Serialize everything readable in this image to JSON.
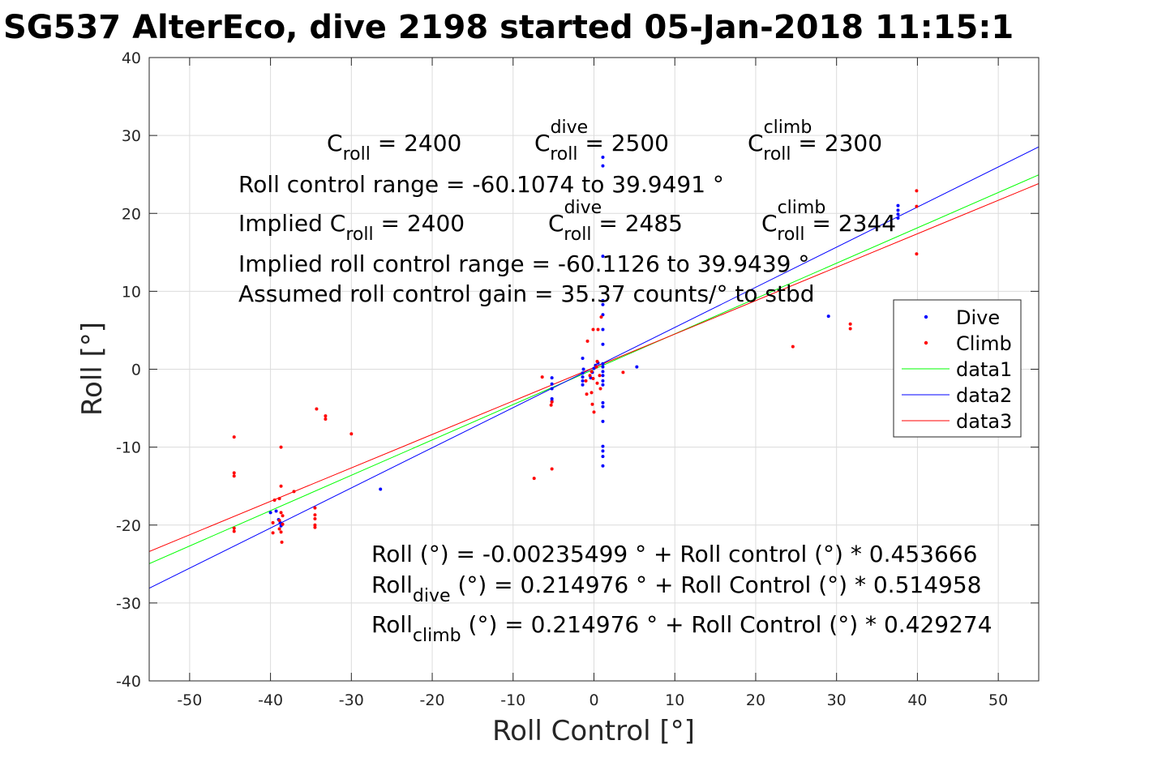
{
  "chart_data": {
    "type": "scatter",
    "title": "SG537 AlterEco, dive 2198 started 05-Jan-2018 11:15:1",
    "xlabel": "Roll Control [°]",
    "ylabel": "Roll [°]",
    "xlim": [
      -55,
      55
    ],
    "ylim": [
      -40,
      40
    ],
    "xticks": [
      -50,
      -40,
      -30,
      -20,
      -10,
      0,
      10,
      20,
      30,
      40,
      50
    ],
    "yticks": [
      -40,
      -30,
      -20,
      -10,
      0,
      10,
      20,
      30,
      40
    ],
    "grid": true,
    "legend_position": "right",
    "annotations_top": {
      "c_roll": "2400",
      "c_roll_dive": "2500",
      "c_roll_climb": "2300",
      "range_line": "Roll control range = -60.1074 to 39.9491 °",
      "implied_prefix": "Implied C",
      "implied_c_roll": "2485",
      "implied_c_roll_value": "2400",
      "implied_c_roll_climb": "2344",
      "implied_range_line": "Implied roll control range = -60.1126 to 39.9439 °",
      "gain_line": "Assumed roll control gain = 35.37 counts/° to stbd"
    },
    "annotations_bottom": {
      "fit_all": "Roll (°) = -0.00235499 ° + Roll control (°) * 0.453666",
      "fit_dive_rest": "(°) = 0.214976 ° + Roll Control (°) * 0.514958",
      "fit_climb_rest": "(°) = 0.214976 ° + Roll Control (°) * 0.429274"
    },
    "series": [
      {
        "name": "Dive",
        "kind": "points",
        "color": "#0000ff",
        "points": [
          [
            1.1,
            27.2
          ],
          [
            1.1,
            26.1
          ],
          [
            1.1,
            14.5
          ],
          [
            1.1,
            8.8
          ],
          [
            1.1,
            8.3
          ],
          [
            1.1,
            7.0
          ],
          [
            1.1,
            5.1
          ],
          [
            1.1,
            3.2
          ],
          [
            1.1,
            0.7
          ],
          [
            1.1,
            0.3
          ],
          [
            1.1,
            -0.3
          ],
          [
            1.1,
            -0.8
          ],
          [
            1.1,
            -1.5
          ],
          [
            1.1,
            -2.0
          ],
          [
            1.1,
            -4.3
          ],
          [
            1.1,
            -4.8
          ],
          [
            1.1,
            -6.7
          ],
          [
            1.1,
            -9.9
          ],
          [
            1.1,
            -10.5
          ],
          [
            1.1,
            -11.2
          ],
          [
            1.1,
            -12.4
          ],
          [
            0.2,
            0.5
          ],
          [
            0.0,
            0.1
          ],
          [
            -0.2,
            -0.4
          ],
          [
            0.5,
            0.8
          ],
          [
            -0.4,
            -1.1
          ],
          [
            -1.4,
            1.4
          ],
          [
            -1.3,
            0.0
          ],
          [
            -1.4,
            -0.5
          ],
          [
            -1.4,
            -1.0
          ],
          [
            -1.4,
            -1.5
          ],
          [
            -1.4,
            -2.0
          ],
          [
            -5.2,
            -1.1
          ],
          [
            -5.2,
            -1.9
          ],
          [
            -5.2,
            -2.5
          ],
          [
            -5.2,
            -3.8
          ],
          [
            -5.2,
            -4.1
          ],
          [
            5.3,
            0.3
          ],
          [
            29.0,
            6.8
          ],
          [
            -26.4,
            -15.4
          ],
          [
            37.6,
            21.0
          ],
          [
            37.6,
            20.4
          ],
          [
            37.6,
            19.9
          ],
          [
            37.6,
            19.4
          ],
          [
            -40.0,
            -18.4
          ],
          [
            -39.3,
            -18.2
          ],
          [
            -39.0,
            -19.3
          ],
          [
            -38.8,
            -19.7
          ],
          [
            -38.7,
            -20.1
          ]
        ]
      },
      {
        "name": "Climb",
        "kind": "points",
        "color": "#ff0000",
        "points": [
          [
            39.9,
            22.9
          ],
          [
            39.9,
            20.9
          ],
          [
            39.9,
            14.8
          ],
          [
            31.7,
            5.8
          ],
          [
            31.7,
            5.2
          ],
          [
            24.6,
            2.9
          ],
          [
            0.9,
            6.7
          ],
          [
            0.5,
            5.1
          ],
          [
            -0.1,
            5.1
          ],
          [
            -0.8,
            3.6
          ],
          [
            0.4,
            1.0
          ],
          [
            0.3,
            0.3
          ],
          [
            -0.3,
            -0.3
          ],
          [
            -0.5,
            -0.8
          ],
          [
            -0.1,
            -1.2
          ],
          [
            0.4,
            -1.8
          ],
          [
            -0.9,
            -3.2
          ],
          [
            -0.3,
            -3.0
          ],
          [
            -0.2,
            -4.5
          ],
          [
            0.0,
            -5.5
          ],
          [
            0.8,
            -2.5
          ],
          [
            -1.0,
            -1.5
          ],
          [
            0.7,
            -0.8
          ],
          [
            3.6,
            -0.4
          ],
          [
            -6.4,
            -1.0
          ],
          [
            -5.3,
            -4.6
          ],
          [
            -5.2,
            -4.2
          ],
          [
            -5.2,
            -12.8
          ],
          [
            -7.4,
            -14.0
          ],
          [
            -44.5,
            -8.7
          ],
          [
            -44.5,
            -13.3
          ],
          [
            -44.5,
            -13.7
          ],
          [
            -44.5,
            -20.4
          ],
          [
            -44.5,
            -20.8
          ],
          [
            -38.7,
            -10.0
          ],
          [
            -38.7,
            -15.0
          ],
          [
            -38.9,
            -16.6
          ],
          [
            -39.5,
            -16.8
          ],
          [
            -37.1,
            -15.7
          ],
          [
            -38.7,
            -18.4
          ],
          [
            -38.5,
            -18.8
          ],
          [
            -38.9,
            -19.4
          ],
          [
            -38.5,
            -19.9
          ],
          [
            -38.9,
            -20.5
          ],
          [
            -38.7,
            -20.9
          ],
          [
            -38.6,
            -22.2
          ],
          [
            -39.7,
            -19.7
          ],
          [
            -39.7,
            -21.0
          ],
          [
            -34.3,
            -5.1
          ],
          [
            -33.2,
            -6.0
          ],
          [
            -33.2,
            -6.4
          ],
          [
            -34.5,
            -17.8
          ],
          [
            -34.5,
            -18.7
          ],
          [
            -34.5,
            -19.2
          ],
          [
            -34.5,
            -20.0
          ],
          [
            -34.5,
            -20.3
          ],
          [
            -30.0,
            -8.3
          ]
        ]
      },
      {
        "name": "data1",
        "kind": "line",
        "color": "#00ff00",
        "intercept": -0.00235499,
        "slope": 0.453666
      },
      {
        "name": "data2",
        "kind": "line",
        "color": "#0000ff",
        "intercept": 0.214976,
        "slope": 0.514958
      },
      {
        "name": "data3",
        "kind": "line",
        "color": "#ff0000",
        "intercept": 0.214976,
        "slope": 0.429274
      }
    ]
  }
}
